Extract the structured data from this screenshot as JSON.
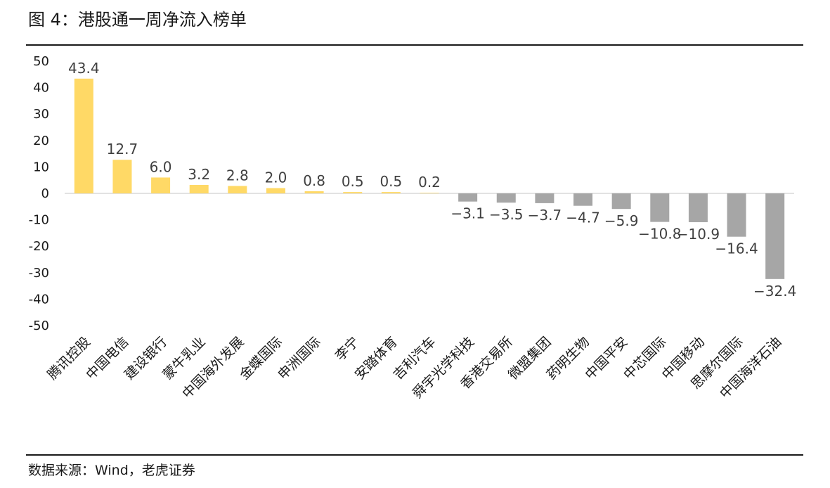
{
  "figure": {
    "title": "图 4：港股通一周净流入榜单",
    "source": "数据来源：Wind，老虎证券"
  },
  "colors": {
    "positive": "#FFD966",
    "negative": "#A6A6A6",
    "axis": "#D9D9D9",
    "rule": "#1A1A1A"
  },
  "chart_data": {
    "type": "bar",
    "categories": [
      "腾讯控股",
      "中国电信",
      "建设银行",
      "蒙牛乳业",
      "中国海外发展",
      "金蝶国际",
      "申洲国际",
      "李宁",
      "安踏体育",
      "吉利汽车",
      "舜宇光学科技",
      "香港交易所",
      "微盟集团",
      "药明生物",
      "中国平安",
      "中芯国际",
      "中国移动",
      "思摩尔国际",
      "中国海洋石油"
    ],
    "values": [
      43.4,
      12.7,
      6.0,
      3.2,
      2.8,
      2.0,
      0.8,
      0.5,
      0.5,
      0.2,
      -3.1,
      -3.5,
      -3.7,
      -4.7,
      -5.9,
      -10.8,
      -10.9,
      -16.4,
      -32.4
    ],
    "data_labels": [
      "43.4",
      "12.7",
      "6.0",
      "3.2",
      "2.8",
      "2.0",
      "0.8",
      "0.5",
      "0.5",
      "0.2",
      "−3.1",
      "−3.5",
      "−3.7",
      "−4.7",
      "−5.9",
      "−10.8",
      "−10.9",
      "−16.4",
      "−32.4"
    ],
    "y_ticks": [
      50,
      40,
      30,
      20,
      10,
      0,
      -10,
      -20,
      -30,
      -40,
      -50
    ],
    "ylim": [
      -50,
      50
    ],
    "grid": false,
    "legend": "none"
  }
}
